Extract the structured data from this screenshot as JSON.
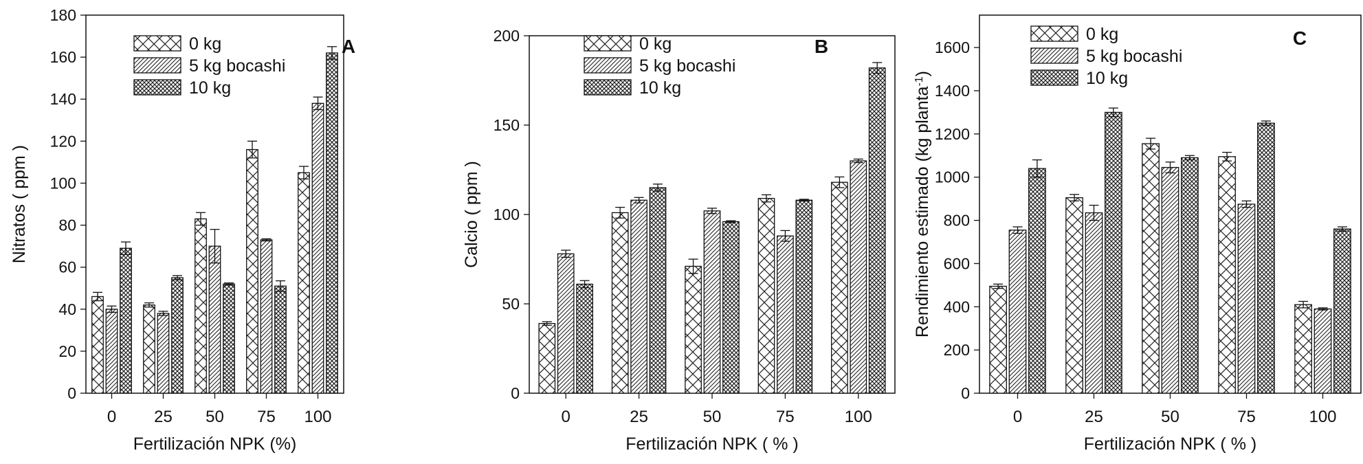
{
  "chart_data": [
    {
      "type": "bar",
      "panel_letter": "A",
      "ylabel": "Nitratos ( ppm )",
      "xlabel": "Fertilización NPK (%)",
      "ylim": [
        0,
        180
      ],
      "yticks": [
        0,
        20,
        40,
        60,
        80,
        100,
        120,
        140,
        160,
        180
      ],
      "categories": [
        "0",
        "25",
        "50",
        "75",
        "100"
      ],
      "series": [
        {
          "name": "0 kg",
          "pattern": "crosshatch-light",
          "values": [
            46,
            42,
            83,
            116,
            105
          ],
          "errors": [
            2,
            1,
            3,
            4,
            3
          ]
        },
        {
          "name": "5 kg bocashi",
          "pattern": "diagonal",
          "values": [
            40,
            38,
            70,
            73,
            138
          ],
          "errors": [
            1.5,
            1,
            8,
            0.5,
            3
          ]
        },
        {
          "name": "10 kg",
          "pattern": "crosshatch-dense",
          "values": [
            69,
            55,
            52,
            51,
            162
          ],
          "errors": [
            3,
            1,
            0.5,
            2.5,
            3
          ]
        }
      ]
    },
    {
      "type": "bar",
      "panel_letter": "B",
      "ylabel": "Calcio ( ppm )",
      "xlabel": "Fertilización NPK ( % )",
      "ylim": [
        0,
        200
      ],
      "yticks": [
        0,
        50,
        100,
        150,
        200
      ],
      "categories": [
        "0",
        "25",
        "50",
        "75",
        "100"
      ],
      "series": [
        {
          "name": "0 kg",
          "pattern": "crosshatch-light",
          "values": [
            39,
            101,
            71,
            109,
            118
          ],
          "errors": [
            1,
            3,
            4,
            2,
            3
          ]
        },
        {
          "name": "5 kg bocashi",
          "pattern": "diagonal",
          "values": [
            78,
            108,
            102,
            88,
            130
          ],
          "errors": [
            2,
            1.5,
            1.5,
            3,
            1
          ]
        },
        {
          "name": "10 kg",
          "pattern": "crosshatch-dense",
          "values": [
            61,
            115,
            96,
            108,
            182
          ],
          "errors": [
            2,
            2,
            0.5,
            0.5,
            3
          ]
        }
      ]
    },
    {
      "type": "bar",
      "panel_letter": "C",
      "ylabel": "Rendimiento estimado (kg planta",
      "ylabel_sup": "-1",
      "ylabel_close": ")",
      "xlabel": "Fertilización NPK ( % )",
      "ylim": [
        0,
        1750
      ],
      "yticks": [
        0,
        200,
        400,
        600,
        800,
        1000,
        1200,
        1400,
        1600
      ],
      "categories": [
        "0",
        "25",
        "50",
        "75",
        "100"
      ],
      "series": [
        {
          "name": "0 kg",
          "pattern": "crosshatch-light",
          "values": [
            495,
            905,
            1155,
            1095,
            410
          ],
          "errors": [
            10,
            15,
            25,
            20,
            15
          ]
        },
        {
          "name": "5 kg bocashi",
          "pattern": "diagonal",
          "values": [
            755,
            835,
            1045,
            875,
            390
          ],
          "errors": [
            15,
            35,
            25,
            15,
            5
          ]
        },
        {
          "name": "10 kg",
          "pattern": "crosshatch-dense",
          "values": [
            1040,
            1300,
            1090,
            1250,
            760
          ],
          "errors": [
            40,
            20,
            10,
            10,
            10
          ]
        }
      ]
    }
  ]
}
